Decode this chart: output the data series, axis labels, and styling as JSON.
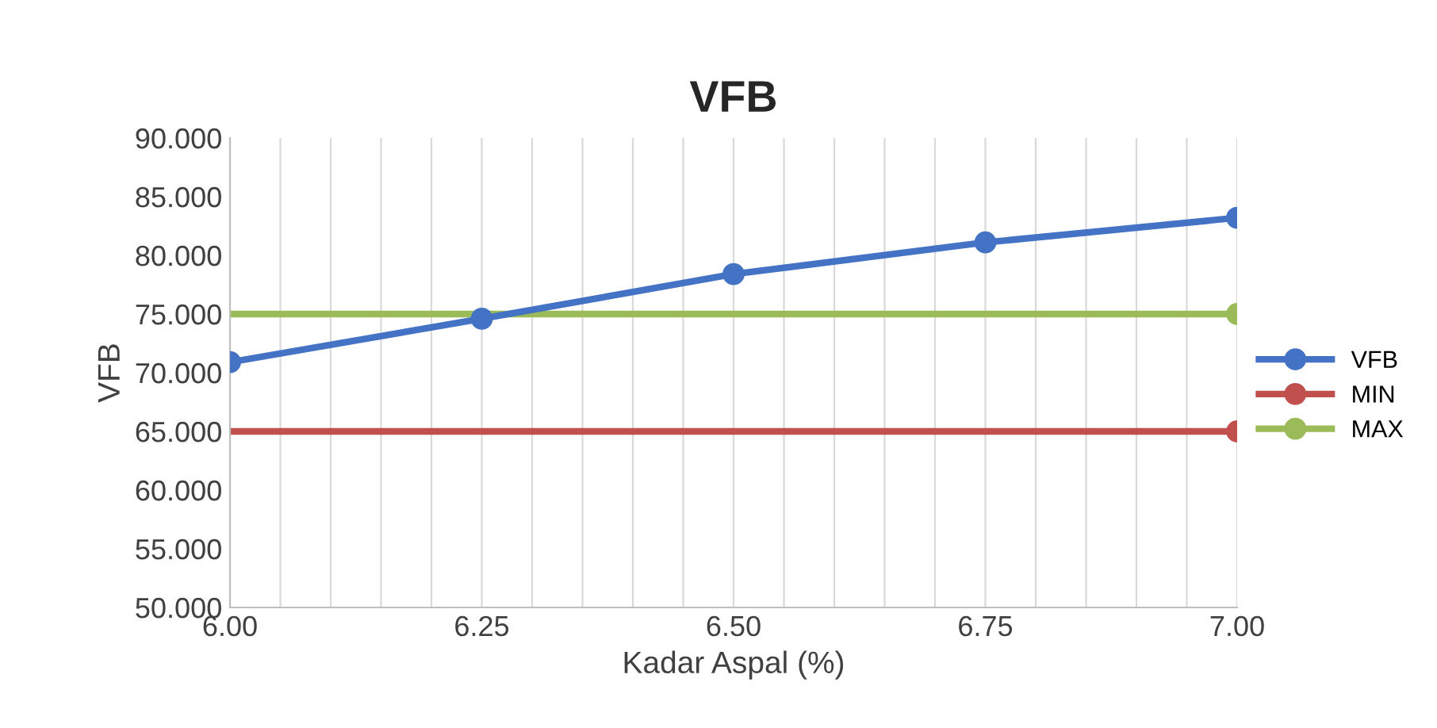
{
  "chart_data": {
    "type": "line",
    "title": "VFB",
    "xlabel": "Kadar Aspal (%)",
    "ylabel": "VFB",
    "xlim": [
      6.0,
      7.0
    ],
    "xticks": [
      {
        "value": 6.0,
        "label": "6.00"
      },
      {
        "value": 6.25,
        "label": "6.25"
      },
      {
        "value": 6.5,
        "label": "6.50"
      },
      {
        "value": 6.75,
        "label": "6.75"
      },
      {
        "value": 7.0,
        "label": "7.00"
      }
    ],
    "ylim": [
      50,
      90
    ],
    "yticks": [
      {
        "value": 50,
        "label": "50.000"
      },
      {
        "value": 55,
        "label": "55.000"
      },
      {
        "value": 60,
        "label": "60.000"
      },
      {
        "value": 65,
        "label": "65.000"
      },
      {
        "value": 70,
        "label": "70.000"
      },
      {
        "value": 75,
        "label": "75.000"
      },
      {
        "value": 80,
        "label": "80.000"
      },
      {
        "value": 85,
        "label": "85.000"
      },
      {
        "value": 90,
        "label": "90.000"
      }
    ],
    "grid": "x",
    "legend": "right",
    "marker": "circle",
    "line_style": "solid",
    "series": [
      {
        "name": "VFB",
        "color": "#4472c4",
        "x": [
          6.0,
          6.25,
          6.5,
          6.75,
          7.0
        ],
        "values": [
          70.9,
          74.6,
          78.4,
          81.1,
          83.2
        ]
      },
      {
        "name": "MIN",
        "color": "#c0504d",
        "x": [
          6.0,
          7.0
        ],
        "values": [
          65,
          65
        ]
      },
      {
        "name": "MAX",
        "color": "#9bbb59",
        "x": [
          6.0,
          7.0
        ],
        "values": [
          75,
          75
        ]
      }
    ]
  }
}
